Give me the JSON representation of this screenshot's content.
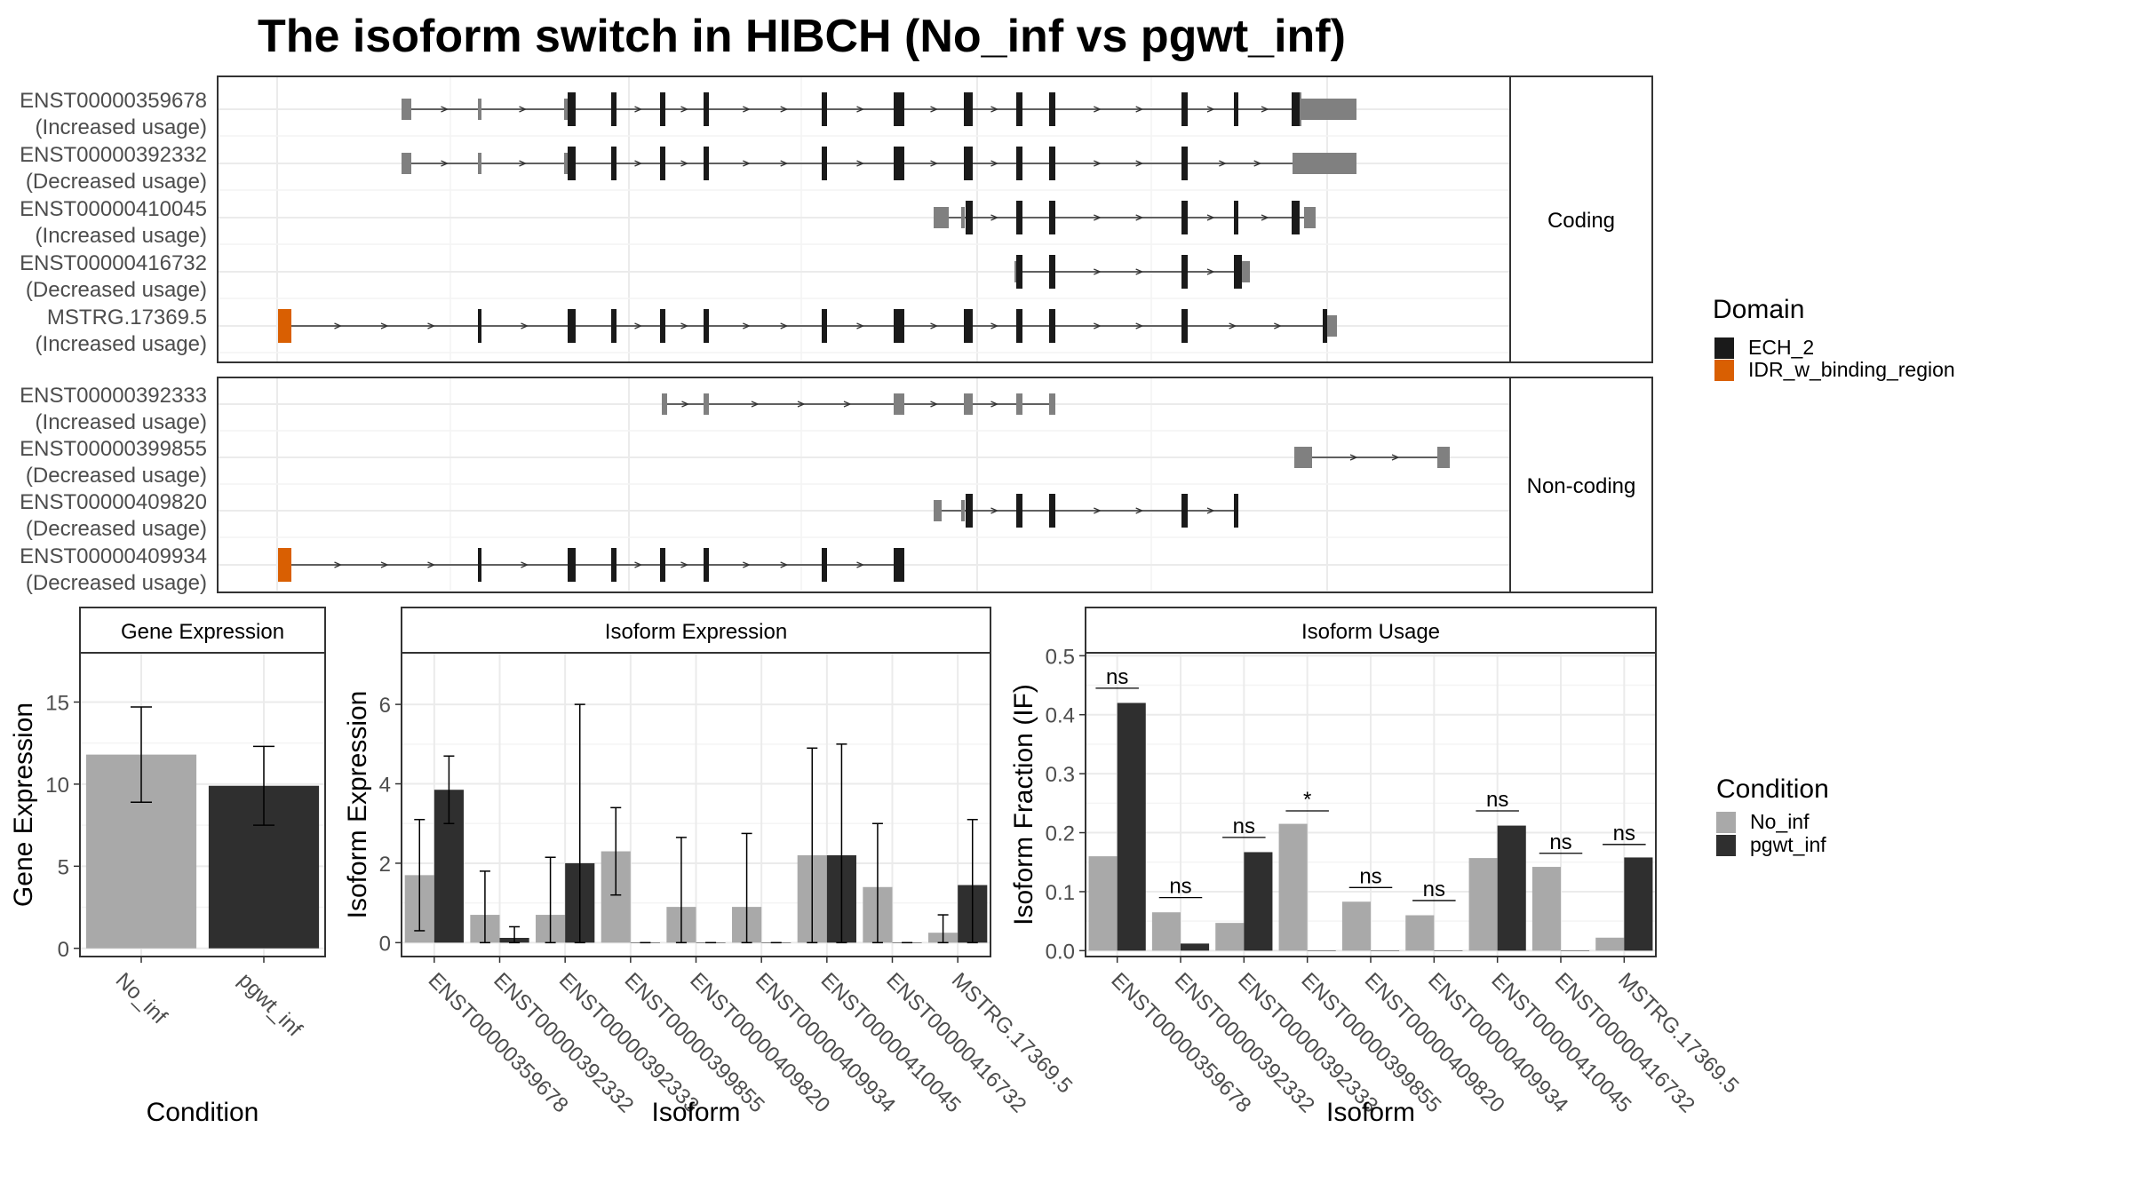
{
  "title": "The isoform switch in HIBCH (No_inf vs pgwt_inf)",
  "colors": {
    "no_inf": "#a9a9a9",
    "pgwt_inf": "#2f2f2f",
    "ech2": "#1a1a1a",
    "idr": "#d95f02",
    "utr": "#808080",
    "strip_bg": "#ffffff",
    "grid": "#ebebeb"
  },
  "transcripts": {
    "panels": [
      {
        "label": "Coding",
        "rows": [
          {
            "name": "ENST00000359678",
            "usage": "(Increased usage)",
            "span": [
              452,
              1527
            ],
            "utr": [
              [
                452,
                463
              ],
              [
                538,
                542
              ],
              [
                635,
                644
              ],
              [
                1455,
                1470
              ],
              [
                1468,
                1527
              ]
            ],
            "cds": [
              [
                1455,
                1465
              ]
            ],
            "domains": [
              {
                "type": "ech2",
                "ranges": [
                  [
                    639,
                    648
                  ],
                  [
                    688,
                    694
                  ],
                  [
                    743,
                    749
                  ],
                  [
                    792,
                    798
                  ],
                  [
                    925,
                    931
                  ],
                  [
                    1006,
                    1018
                  ],
                  [
                    1085,
                    1095
                  ],
                  [
                    1144,
                    1151
                  ],
                  [
                    1181,
                    1188
                  ],
                  [
                    1330,
                    1337
                  ],
                  [
                    1389,
                    1394
                  ],
                  [
                    1454,
                    1463
                  ]
                ]
              }
            ]
          },
          {
            "name": "ENST00000392332",
            "usage": "(Decreased usage)",
            "span": [
              452,
              1527
            ],
            "utr": [
              [
                452,
                463
              ],
              [
                538,
                542
              ],
              [
                635,
                644
              ],
              [
                1455,
                1527
              ]
            ],
            "cds": [],
            "domains": [
              {
                "type": "ech2",
                "ranges": [
                  [
                    639,
                    648
                  ],
                  [
                    688,
                    694
                  ],
                  [
                    743,
                    749
                  ],
                  [
                    792,
                    798
                  ],
                  [
                    925,
                    931
                  ],
                  [
                    1006,
                    1018
                  ],
                  [
                    1085,
                    1095
                  ],
                  [
                    1144,
                    1151
                  ],
                  [
                    1181,
                    1188
                  ],
                  [
                    1330,
                    1337
                  ]
                ]
              }
            ]
          },
          {
            "name": "ENST00000410045",
            "usage": "(Increased usage)",
            "span": [
              1053,
              1479
            ],
            "utr": [
              [
                1051,
                1068
              ],
              [
                1082,
                1086
              ],
              [
                1468,
                1481
              ]
            ],
            "cds": [],
            "domains": [
              {
                "type": "ech2",
                "ranges": [
                  [
                    1087,
                    1095
                  ],
                  [
                    1144,
                    1151
                  ],
                  [
                    1181,
                    1188
                  ],
                  [
                    1330,
                    1337
                  ],
                  [
                    1389,
                    1394
                  ],
                  [
                    1454,
                    1463
                  ]
                ]
              }
            ]
          },
          {
            "name": "ENST00000416732",
            "usage": "(Decreased usage)",
            "span": [
              1145,
              1407
            ],
            "utr": [
              [
                1142,
                1150
              ],
              [
                1389,
                1407
              ]
            ],
            "cds": [],
            "domains": [
              {
                "type": "ech2",
                "ranges": [
                  [
                    1144,
                    1151
                  ],
                  [
                    1181,
                    1188
                  ],
                  [
                    1330,
                    1337
                  ],
                  [
                    1389,
                    1398
                  ]
                ]
              }
            ]
          },
          {
            "name": "MSTRG.17369.5",
            "usage": "(Increased usage)",
            "span": [
              313,
              1502
            ],
            "utr": [
              [
                1490,
                1505
              ]
            ],
            "cds": [],
            "domains": [
              {
                "type": "idr",
                "ranges": [
                  [
                    313,
                    328
                  ]
                ]
              },
              {
                "type": "ech2",
                "ranges": [
                  [
                    538,
                    542
                  ],
                  [
                    639,
                    648
                  ],
                  [
                    688,
                    694
                  ],
                  [
                    743,
                    749
                  ],
                  [
                    792,
                    798
                  ],
                  [
                    925,
                    931
                  ],
                  [
                    1006,
                    1018
                  ],
                  [
                    1085,
                    1095
                  ],
                  [
                    1144,
                    1151
                  ],
                  [
                    1181,
                    1188
                  ],
                  [
                    1330,
                    1337
                  ],
                  [
                    1489,
                    1494
                  ]
                ]
              }
            ]
          }
        ]
      },
      {
        "label": "Non-coding",
        "rows": [
          {
            "name": "ENST00000392333",
            "usage": "(Increased usage)",
            "span": [
              745,
              1188
            ],
            "utr": [
              [
                745,
                751
              ],
              [
                792,
                798
              ],
              [
                1006,
                1018
              ],
              [
                1085,
                1095
              ],
              [
                1144,
                1151
              ],
              [
                1181,
                1188
              ]
            ],
            "cds": [],
            "domains": []
          },
          {
            "name": "ENST00000399855",
            "usage": "(Decreased usage)",
            "span": [
              1461,
              1632
            ],
            "utr": [
              [
                1457,
                1477
              ],
              [
                1618,
                1632
              ]
            ],
            "cds": [],
            "domains": []
          },
          {
            "name": "ENST00000409820",
            "usage": "(Decreased usage)",
            "span": [
              1051,
              1394
            ],
            "utr": [
              [
                1051,
                1060
              ],
              [
                1082,
                1086
              ]
            ],
            "cds": [],
            "domains": [
              {
                "type": "ech2",
                "ranges": [
                  [
                    1087,
                    1095
                  ],
                  [
                    1144,
                    1151
                  ],
                  [
                    1181,
                    1188
                  ],
                  [
                    1330,
                    1337
                  ],
                  [
                    1389,
                    1394
                  ]
                ]
              }
            ]
          },
          {
            "name": "ENST00000409934",
            "usage": "(Decreased usage)",
            "span": [
              313,
              1015
            ],
            "utr": [],
            "cds": [],
            "domains": [
              {
                "type": "idr",
                "ranges": [
                  [
                    313,
                    328
                  ]
                ]
              },
              {
                "type": "ech2",
                "ranges": [
                  [
                    538,
                    542
                  ],
                  [
                    639,
                    648
                  ],
                  [
                    688,
                    694
                  ],
                  [
                    743,
                    749
                  ],
                  [
                    792,
                    798
                  ],
                  [
                    925,
                    931
                  ],
                  [
                    1006,
                    1018
                  ]
                ]
              }
            ]
          }
        ]
      }
    ],
    "legend": {
      "title": "Domain",
      "items": [
        {
          "label": "ECH_2",
          "color": "ech2"
        },
        {
          "label": "IDR_w_binding_region",
          "color": "idr"
        }
      ]
    }
  },
  "chart_data": [
    {
      "type": "bar",
      "title": "Gene Expression",
      "xlabel": "Condition",
      "ylabel": "Gene Expression",
      "categories": [
        "No_inf",
        "pgwt_inf"
      ],
      "values": [
        11.8,
        9.9
      ],
      "err_low": [
        8.9,
        7.5
      ],
      "err_high": [
        14.7,
        12.3
      ],
      "ylim": [
        -0.5,
        18.0
      ],
      "yticks": [
        0,
        5,
        10,
        15
      ],
      "grid": true
    },
    {
      "type": "bar",
      "title": "Isoform Expression",
      "xlabel": "Isoform",
      "ylabel": "Isoform Expression",
      "categories": [
        "ENST00000359678",
        "ENST00000392332",
        "ENST00000392333",
        "ENST00000399855",
        "ENST00000409820",
        "ENST00000409934",
        "ENST00000410045",
        "ENST00000416732",
        "MSTRG.17369.5"
      ],
      "series": [
        {
          "name": "No_inf",
          "values": [
            1.7,
            0.7,
            0.7,
            2.3,
            0.9,
            0.9,
            2.2,
            1.4,
            0.25
          ],
          "err_low": [
            0.3,
            0.0,
            0.0,
            1.2,
            0.0,
            0.0,
            0.0,
            0.0,
            0.0
          ],
          "err_high": [
            3.1,
            1.8,
            2.15,
            3.4,
            2.65,
            2.75,
            4.9,
            3.0,
            0.7
          ]
        },
        {
          "name": "pgwt_inf",
          "values": [
            3.85,
            0.12,
            2.0,
            0.0,
            0.0,
            0.0,
            2.2,
            0.0,
            1.45
          ],
          "err_low": [
            3.0,
            0.0,
            0.0,
            0.0,
            0.0,
            0.0,
            0.0,
            0.0,
            0.0
          ],
          "err_high": [
            4.7,
            0.4,
            6.0,
            0.0,
            0.0,
            0.0,
            5.0,
            0.0,
            3.1
          ]
        }
      ],
      "ylim": [
        -0.35,
        7.3
      ],
      "yticks": [
        0,
        2,
        4,
        6
      ],
      "grid": true
    },
    {
      "type": "bar",
      "title": "Isoform Usage",
      "xlabel": "Isoform",
      "ylabel": "Isoform Fraction (IF)",
      "categories": [
        "ENST00000359678",
        "ENST00000392332",
        "ENST00000392333",
        "ENST00000399855",
        "ENST00000409820",
        "ENST00000409934",
        "ENST00000410045",
        "ENST00000416732",
        "MSTRG.17369.5"
      ],
      "series": [
        {
          "name": "No_inf",
          "values": [
            0.16,
            0.065,
            0.047,
            0.215,
            0.083,
            0.06,
            0.157,
            0.142,
            0.022
          ]
        },
        {
          "name": "pgwt_inf",
          "values": [
            0.42,
            0.012,
            0.167,
            0.0,
            0.0,
            0.0,
            0.212,
            0.0,
            0.158
          ]
        }
      ],
      "significance": [
        "ns",
        "ns",
        "ns",
        "*",
        "ns",
        "ns",
        "ns",
        "ns",
        "ns"
      ],
      "sig_y": [
        0.445,
        0.09,
        0.192,
        0.237,
        0.107,
        0.085,
        0.237,
        0.165,
        0.18
      ],
      "ylim": [
        -0.01,
        0.505
      ],
      "yticks": [
        0.0,
        0.1,
        0.2,
        0.3,
        0.4,
        0.5
      ],
      "grid": true
    }
  ],
  "condition_legend": {
    "title": "Condition",
    "items": [
      {
        "label": "No_inf",
        "color": "no_inf"
      },
      {
        "label": "pgwt_inf",
        "color": "pgwt_inf"
      }
    ]
  }
}
